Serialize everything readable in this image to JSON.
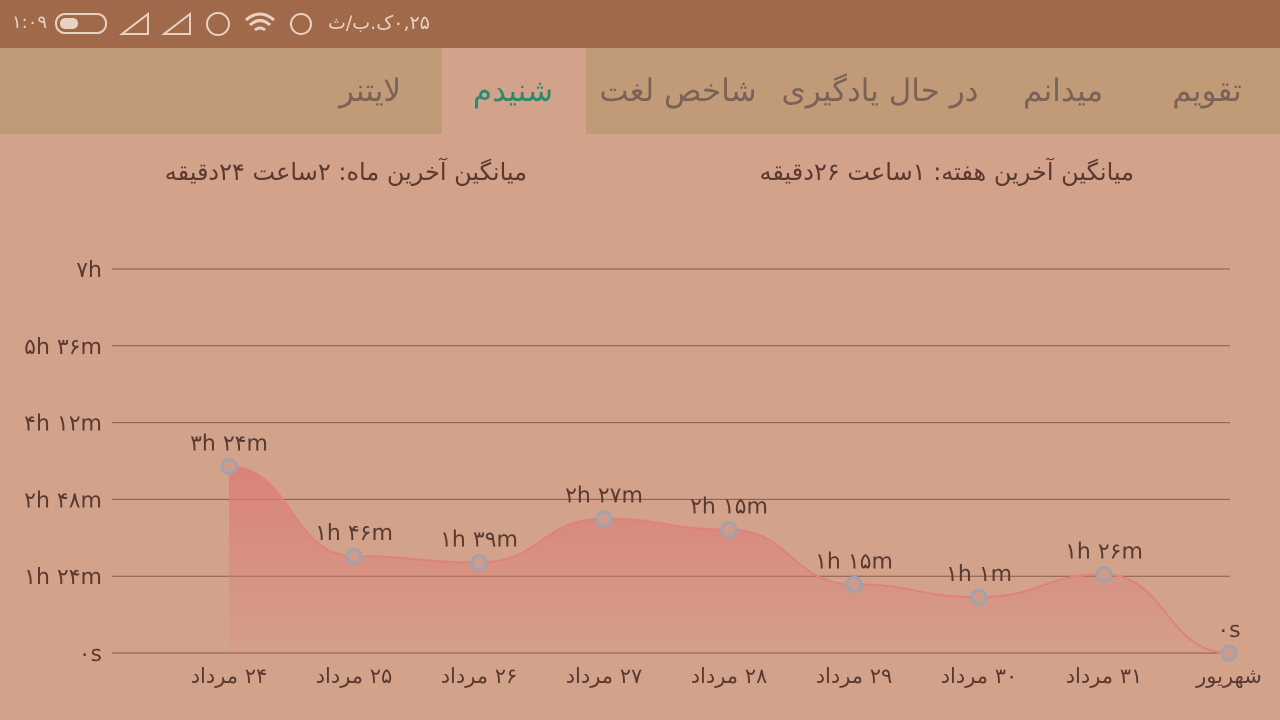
{
  "status_bar": {
    "time": "۱:۰۹",
    "network_speed": "۰,۲۵ک.ب/ث"
  },
  "tabs": [
    "تقویم",
    "میدانم",
    "در حال یادگیری",
    "شاخص لغت",
    "شنیدم",
    "لایتنر"
  ],
  "active_tab": 4,
  "summary": {
    "week": "میانگین آخرین هفته: ۱ساعت  ۲۶دقیقه",
    "month": "میانگین آخرین ماه: ۲ساعت  ۲۴دقیقه"
  },
  "chart_data": {
    "type": "area",
    "categories": [
      "۲۴ مرداد",
      "۲۵ مرداد",
      "۲۶ مرداد",
      "۲۷ مرداد",
      "۲۸ مرداد",
      "۲۹ مرداد",
      "۳۰ مرداد",
      "۳۱ مرداد",
      "شهریور"
    ],
    "values": [
      204,
      106,
      99,
      147,
      135,
      75,
      61,
      86,
      0
    ],
    "value_labels": [
      "۳h ۲۴m",
      "۱h ۴۶m",
      "۱h ۳۹m",
      "۲h ۲۷m",
      "۲h ۱۵m",
      "۱h ۱۵m",
      "۱h ۱m",
      "۱h ۲۶m",
      "۰s"
    ],
    "ylim": [
      0,
      420
    ],
    "yticks": [
      {
        "value": 0,
        "label": "۰s"
      },
      {
        "value": 84,
        "label": "۱h ۲۴m"
      },
      {
        "value": 168,
        "label": "۲h ۴۸m"
      },
      {
        "value": 252,
        "label": "۴h ۱۲m"
      },
      {
        "value": 336,
        "label": "۵h ۳۶m"
      },
      {
        "value": 420,
        "label": "۷h"
      }
    ],
    "color": "#e0827c",
    "grid": true
  }
}
